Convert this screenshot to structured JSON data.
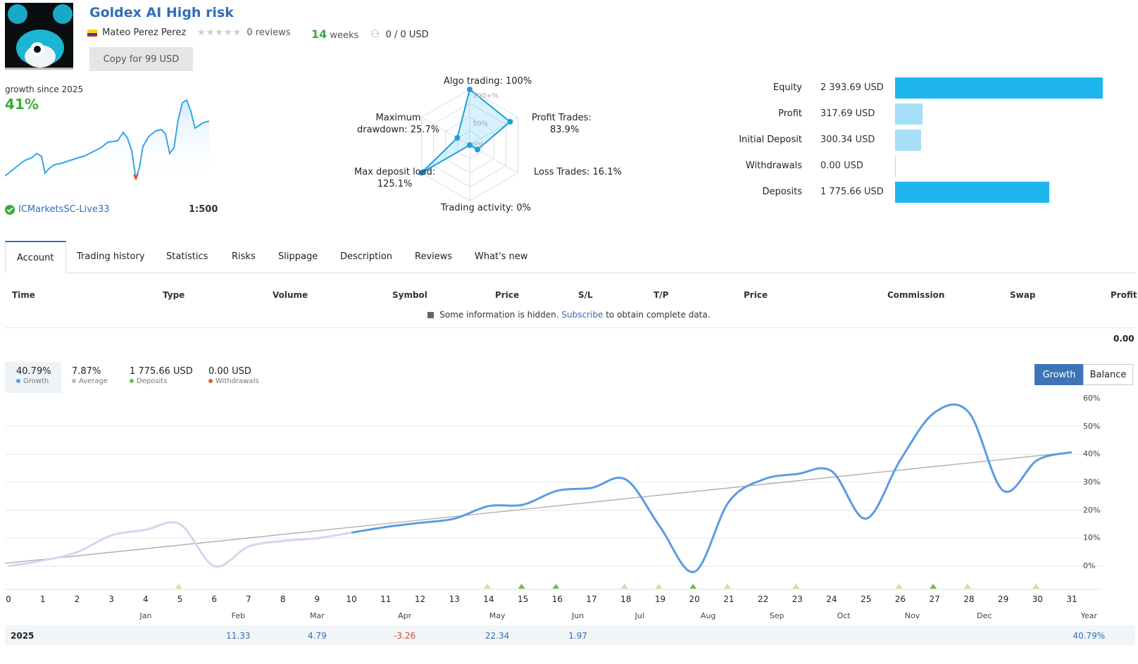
{
  "header": {
    "title": "Goldex AI High risk",
    "author": "Mateo Perez Perez",
    "reviews": "0 reviews",
    "weeks_num": "14",
    "weeks_label": "weeks",
    "subscribers": "0 / 0 USD",
    "copy_button": "Copy for 99 USD"
  },
  "summary": {
    "growth_label": "growth since 2025",
    "growth_value": "41%",
    "broker": "ICMarketsSC-Live33",
    "leverage": "1:500"
  },
  "radar": {
    "algo": "Algo trading: 100%",
    "profit_trades_1": "Profit Trades:",
    "profit_trades_2": "83.9%",
    "loss_trades": "Loss Trades: 16.1%",
    "activity": "Trading activity: 0%",
    "deposit_load_1": "Max deposit load:",
    "deposit_load_2": "125.1%",
    "drawdown_1": "Maximum",
    "drawdown_2": "drawdown: 25.7%",
    "tick_100": "100+%",
    "tick_50": "50%",
    "tick_0": "0%",
    "values": {
      "algo": 100,
      "profit": 83.9,
      "loss": 16.1,
      "activity": 0,
      "deposit_load": 125.1,
      "drawdown": 25.7
    }
  },
  "balances": [
    {
      "label": "Equity",
      "value": "2 393.69 USD",
      "amount": 2393.69,
      "color": "#1fb6ee"
    },
    {
      "label": "Profit",
      "value": "317.69 USD",
      "amount": 317.69,
      "color": "#a6dff7"
    },
    {
      "label": "Initial Deposit",
      "value": "300.34 USD",
      "amount": 300.34,
      "color": "#a6dff7"
    },
    {
      "label": "Withdrawals",
      "value": "0.00 USD",
      "amount": 0,
      "color": "#a6dff7"
    },
    {
      "label": "Deposits",
      "value": "1 775.66 USD",
      "amount": 1775.66,
      "color": "#1fb6ee"
    }
  ],
  "tabs": [
    "Account",
    "Trading history",
    "Statistics",
    "Risks",
    "Slippage",
    "Description",
    "Reviews",
    "What's new"
  ],
  "table": {
    "headers": [
      "Time",
      "Type",
      "Volume",
      "Symbol",
      "Price",
      "S/L",
      "T/P",
      "Price",
      "Commission",
      "Swap",
      "Profit"
    ],
    "note_prefix": "Some information is hidden.",
    "note_link": "Subscribe",
    "note_suffix": "to obtain complete data.",
    "total": "0.00"
  },
  "stats": {
    "growth_value": "40.79%",
    "growth_label": "Growth",
    "average_value": "7.87%",
    "average_label": "Average",
    "deposits_value": "1 775.66 USD",
    "deposits_label": "Deposits",
    "withdrawals_value": "0.00 USD",
    "withdrawals_label": "Withdrawals",
    "toggle_growth": "Growth",
    "toggle_balance": "Balance"
  },
  "chart_data": {
    "type": "line",
    "x": [
      0,
      1,
      2,
      3,
      4,
      5,
      6,
      7,
      8,
      9,
      10,
      11,
      12,
      13,
      14,
      15,
      16,
      17,
      18,
      19,
      20,
      21,
      22,
      23,
      24,
      25,
      26,
      27,
      28,
      29,
      30,
      31
    ],
    "y_ticks": [
      "60%",
      "50%",
      "40%",
      "30%",
      "20%",
      "10%",
      "0%"
    ],
    "ylim": [
      -8,
      62
    ],
    "series": [
      {
        "name": "Growth",
        "values": [
          0,
          2,
          5,
          11,
          13,
          15,
          0,
          7,
          9,
          10,
          12,
          14,
          15.5,
          17,
          21.5,
          22,
          27,
          28,
          31,
          14,
          -2,
          23,
          31,
          33,
          34,
          17,
          38,
          55,
          55,
          27,
          38,
          40.79
        ]
      }
    ],
    "trend": [
      1,
      40.79
    ],
    "months": [
      {
        "label": "Jan",
        "pos": 4
      },
      {
        "label": "Feb",
        "pos": 6.7
      },
      {
        "label": "Mar",
        "pos": 9
      },
      {
        "label": "Apr",
        "pos": 11.55
      },
      {
        "label": "May",
        "pos": 14.25
      },
      {
        "label": "Jun",
        "pos": 16.6
      },
      {
        "label": "Jul",
        "pos": 18.4
      },
      {
        "label": "Aug",
        "pos": 20.4
      },
      {
        "label": "Sep",
        "pos": 22.4
      },
      {
        "label": "Oct",
        "pos": 24.35
      },
      {
        "label": "Nov",
        "pos": 26.35
      },
      {
        "label": "Dec",
        "pos": 28.45
      },
      {
        "label": "Year",
        "pos": 31.5
      }
    ],
    "markers_light": [
      5,
      14,
      18,
      19,
      21,
      23,
      26,
      28,
      30
    ],
    "markers_dark": [
      15,
      16,
      20,
      27
    ],
    "year_row": {
      "year": "2025",
      "values": [
        {
          "text": "11.33",
          "pos": 6.7,
          "color": "#2f6fb5"
        },
        {
          "text": "4.79",
          "pos": 9,
          "color": "#2f6fb5"
        },
        {
          "text": "-3.26",
          "pos": 11.55,
          "color": "#e0442d"
        },
        {
          "text": "22.34",
          "pos": 14.25,
          "color": "#2f6fb5"
        },
        {
          "text": "1.97",
          "pos": 16.6,
          "color": "#2f6fb5"
        },
        {
          "text": "40.79%",
          "pos": 31.5,
          "color": "#2f6fb5"
        }
      ]
    }
  },
  "colors": {
    "accent": "#2f6fb5",
    "green": "#3cab3c",
    "chart_line": "#5b9be3",
    "chart_faded": "#d0d8f0"
  }
}
